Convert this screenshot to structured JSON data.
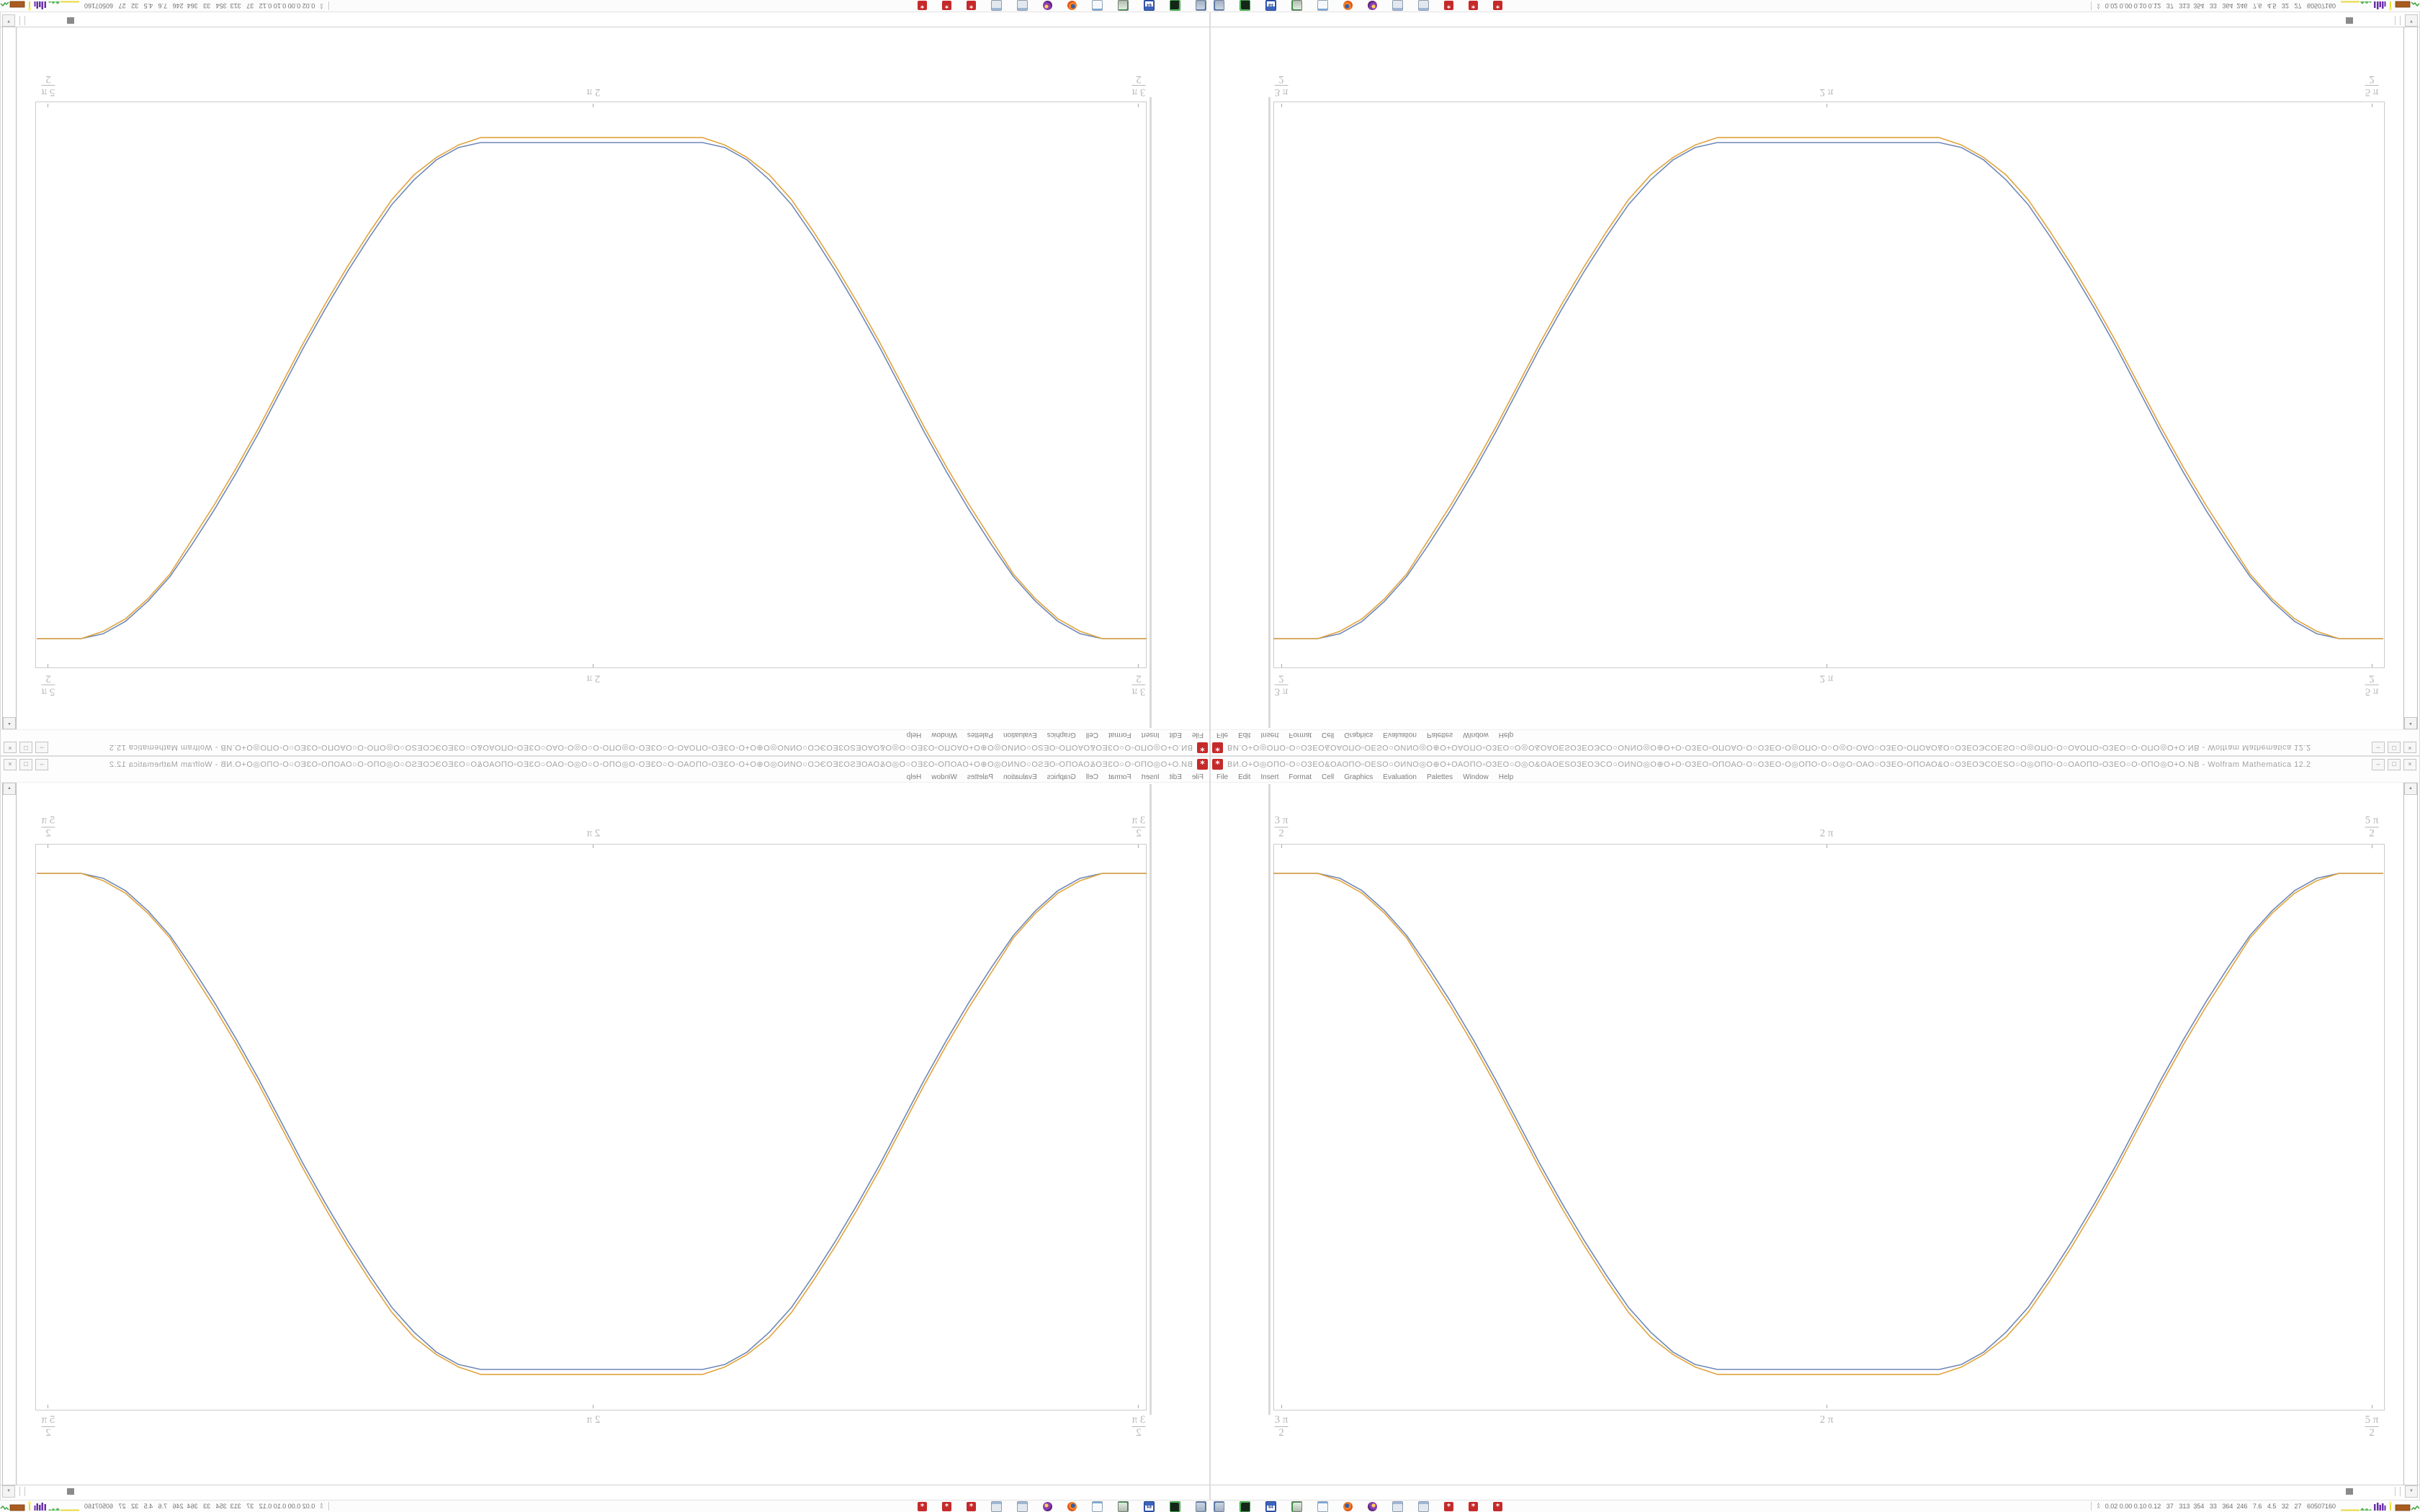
{
  "colors": {
    "mathematica_red": "#c52a2a",
    "curve_blue": "#6e88b7",
    "curve_orange": "#e1a33c",
    "frame_gray": "#cbcbcb",
    "label_gray": "#b5b5b5"
  },
  "window": {
    "title": "ΒИ.Ο+Ο◎ΟΠΟ◦Ο○ΟЗΕΟ&ΟΑΟΠΟ▫ΟΕЅΟ○ΟИΝΟ◎Ο⊕Ο+ΟΑΟΠΟ▫ΟЗΕΟ○Ο◎Ο&ΟΑΟΕЅΟЗΕΟЭСΟ○ΟИΝΟ◎Ο⊕Ο+Ο◦ΟЗΕΟ▫ΟΠΟΑΟ◦Ο○ΟЗΕΟ◦Ο◎ΟΠΟ◦Ο○Ο◎Ο◦ΟΑΟ○ΟЗΕΟ▫ΟΠΟΑΟ&Ο○ΟЗΕΟЭСΟΕЅΟ○Ο◎ΟΠΟ◦Ο○ΟΑΟΠΟ▫ΟЗΕΟ○Ο◦ΟΠΟ◎Ο+Ο.NB - Wolfram Mathematica 12.2",
    "icon_glyph": "*",
    "buttons": {
      "minimize": "–",
      "restore": "□",
      "close": "×"
    }
  },
  "menu": {
    "items": [
      "File",
      "Edit",
      "Insert",
      "Format",
      "Cell",
      "Graphics",
      "Evaluation",
      "Palettes",
      "Window",
      "Help"
    ]
  },
  "scrollbar": {
    "up_glyph": "▲",
    "down_glyph": "▼"
  },
  "chart_data": {
    "type": "line",
    "title": "",
    "xlabel": "",
    "ylabel": "",
    "frame": true,
    "legend": "none",
    "x_tick_labels": [
      "3π/2",
      "2π",
      "5π/2"
    ],
    "x_range_labels": [
      "3π/2",
      "5π/2"
    ],
    "y_range_visible": [
      -1,
      1
    ],
    "ticks": [
      {
        "num": "3 π",
        "den": "2",
        "u": 0.007
      },
      {
        "num": "2 π",
        "den": null,
        "u": 0.498
      },
      {
        "num": "5 π",
        "den": "2",
        "u": 0.99
      }
    ],
    "x": [
      0,
      0.04,
      0.06,
      0.08,
      0.1,
      0.12,
      0.14,
      0.16,
      0.18,
      0.2,
      0.22,
      0.24,
      0.26,
      0.28,
      0.3,
      0.32,
      0.34,
      0.36,
      0.38,
      0.4,
      0.5,
      0.6,
      0.62,
      0.64,
      0.66,
      0.68,
      0.7,
      0.72,
      0.74,
      0.76,
      0.78,
      0.8,
      0.82,
      0.84,
      0.86,
      0.88,
      0.9,
      0.92,
      0.94,
      0.96,
      1
    ],
    "series": [
      {
        "name": "curve-1-blue",
        "color": "#6e88b7",
        "values": [
          1,
          1,
          0.98,
          0.93,
          0.85,
          0.75,
          0.62,
          0.48,
          0.33,
          0.17,
          0,
          -0.17,
          -0.33,
          -0.48,
          -0.62,
          -0.75,
          -0.85,
          -0.93,
          -0.98,
          -1,
          -1,
          -1,
          -0.98,
          -0.93,
          -0.85,
          -0.75,
          -0.62,
          -0.48,
          -0.33,
          -0.17,
          0,
          0.17,
          0.33,
          0.48,
          0.62,
          0.75,
          0.85,
          0.93,
          0.98,
          1,
          1
        ]
      },
      {
        "name": "curve-2-orange",
        "color": "#e1a33c",
        "values": [
          1,
          1,
          0.97,
          0.92,
          0.84,
          0.74,
          0.6,
          0.46,
          0.31,
          0.15,
          -0.02,
          -0.19,
          -0.35,
          -0.5,
          -0.64,
          -0.77,
          -0.87,
          -0.94,
          -0.99,
          -1.02,
          -1.02,
          -1.02,
          -0.99,
          -0.94,
          -0.87,
          -0.77,
          -0.64,
          -0.5,
          -0.35,
          -0.19,
          -0.02,
          0.15,
          0.31,
          0.46,
          0.6,
          0.74,
          0.84,
          0.92,
          0.97,
          1,
          1
        ]
      }
    ]
  },
  "taskbar": {
    "launchers": [
      {
        "kind": "monitor",
        "name": "computer"
      },
      {
        "kind": "terminal",
        "name": "terminal"
      },
      {
        "kind": "floppy64",
        "name": "emulator-64",
        "label": "64"
      },
      {
        "kind": "monitor2",
        "name": "remote-display"
      },
      {
        "kind": "notepad",
        "name": "text-editor"
      },
      {
        "kind": "firefox",
        "name": "firefox"
      },
      {
        "kind": "purple",
        "name": "media-app"
      },
      {
        "kind": "calc",
        "name": "calculator-1"
      },
      {
        "kind": "calc",
        "name": "calculator-2"
      },
      {
        "kind": "mma",
        "name": "mathematica-1",
        "label": "*"
      },
      {
        "kind": "mma",
        "name": "mathematica-2",
        "label": "*"
      },
      {
        "kind": "mma",
        "name": "mathematica-3",
        "label": "*"
      }
    ],
    "tray": {
      "expander_glyph": "∧\n∧",
      "stats": "0.02 0.00 0.10 0.12   37   313  354   33   364  246   7.6   4.5   32   27   60507160"
    }
  }
}
